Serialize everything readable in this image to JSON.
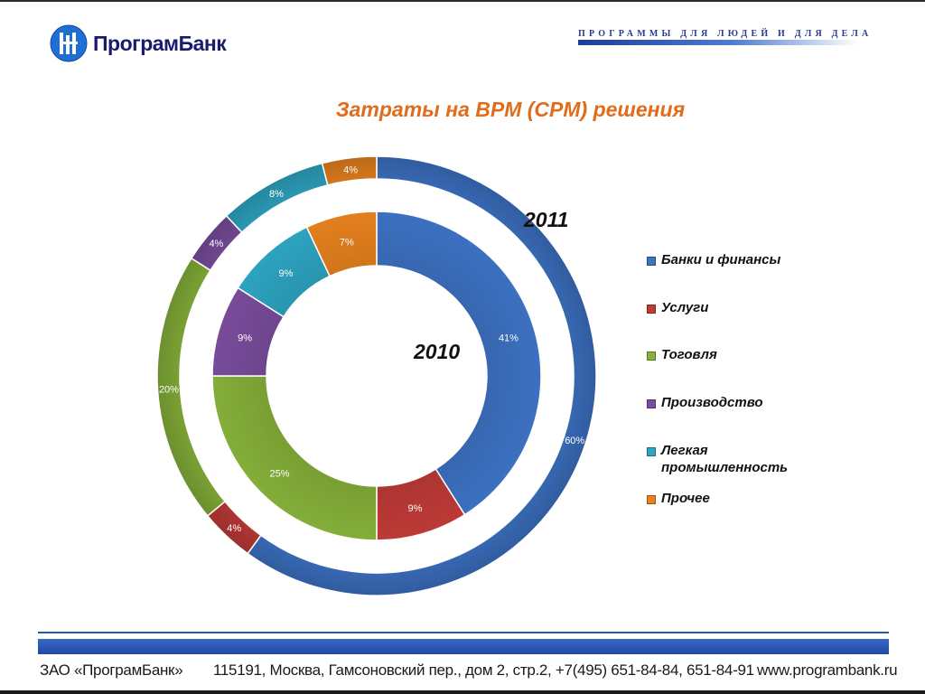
{
  "header": {
    "logo_text": "ПрограмБанк",
    "tagline": "ПРОГРАММЫ ДЛЯ ЛЮДЕЙ И ДЛЯ ДЕЛА",
    "colors": {
      "logo_blue": "#1e6fd0",
      "tagline_blue": "#2b3a8e"
    }
  },
  "slide_title": "Затраты на BPM (CPM) решения",
  "chart_data": {
    "type": "doughnut",
    "title": "Затраты на BPM (CPM) решения",
    "legend_position": "right",
    "categories": [
      "Банки и финансы",
      "Услуги",
      "Тоговля",
      "Производство",
      "Легкая промышленность",
      "Прочее"
    ],
    "category_lines": [
      [
        "Банки и финансы"
      ],
      [
        "Услуги"
      ],
      [
        "Тоговля"
      ],
      [
        "Производство"
      ],
      [
        "Легкая",
        "промышленность"
      ],
      [
        "Прочее"
      ]
    ],
    "colors": [
      "#3d72c4",
      "#c03b37",
      "#86b13a",
      "#7a4d9e",
      "#2ea6c4",
      "#e8821e"
    ],
    "series": [
      {
        "name": "2011",
        "ring": "outer",
        "values": [
          60,
          4,
          20,
          4,
          8,
          4
        ],
        "labels": [
          "60%",
          "4%",
          "20%",
          "4%",
          "8%",
          "4%"
        ]
      },
      {
        "name": "2010",
        "ring": "inner",
        "values": [
          41,
          9,
          25,
          9,
          9,
          7
        ],
        "labels": [
          "41%",
          "9%",
          "25%",
          "9%",
          "9%",
          "7%"
        ]
      }
    ]
  },
  "footer": {
    "company": "ЗАО «ПрограмБанк»",
    "address": "115191, Москва, Гамсоновский пер., дом 2, стр.2, +7(495) 651-84-84, 651-84-91",
    "website": "www.programbank.ru"
  }
}
